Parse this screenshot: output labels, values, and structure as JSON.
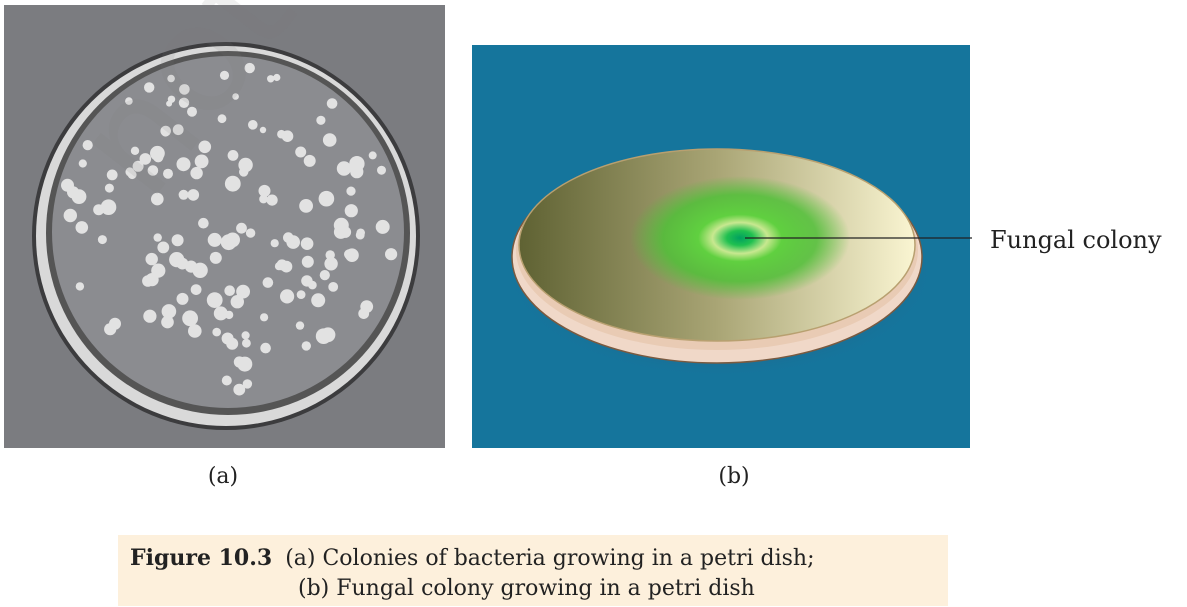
{
  "figure": {
    "panel_a_label": "(a)",
    "panel_b_label": "(b)",
    "callout": "Fungal colony",
    "caption_number": "Figure 10.3",
    "caption_line1": "(a) Colonies of bacteria growing in a petri dish;",
    "caption_line2": "(b) Fungal colony growing in a petri dish"
  },
  "colors": {
    "panel_a_bg": "#7b7c80",
    "panel_b_bg": "#15759c",
    "agar": "#d8d0a0",
    "fungus": "#1fb85a",
    "caption_bg": "#fdf0dc"
  },
  "watermark": "not to be"
}
